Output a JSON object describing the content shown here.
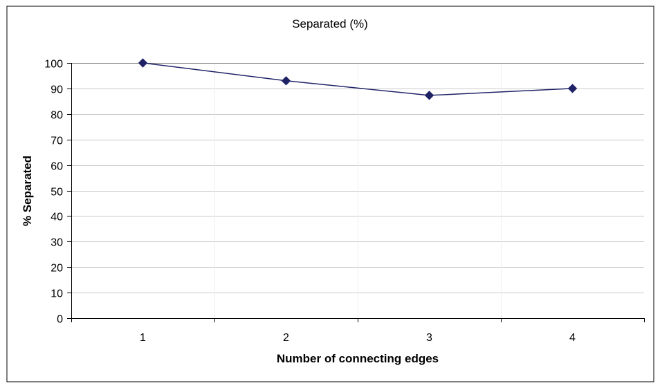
{
  "chart_data": {
    "type": "line",
    "title": "Separated (%)",
    "xlabel": "Number of connecting edges",
    "ylabel": "% Separated",
    "categories": [
      "1",
      "2",
      "3",
      "4"
    ],
    "series": [
      {
        "values": [
          100,
          93,
          87.3,
          90
        ]
      }
    ],
    "ylim": [
      0,
      100
    ],
    "yticks": [
      "0",
      "10",
      "20",
      "30",
      "40",
      "50",
      "60",
      "70",
      "80",
      "90",
      "100"
    ],
    "grid": true,
    "legend": "none",
    "colors": {
      "line": "#1F2366",
      "marker": "#1F2366",
      "grid": "#C8C8C8",
      "axis": "#000000",
      "frame": "#000000"
    }
  }
}
